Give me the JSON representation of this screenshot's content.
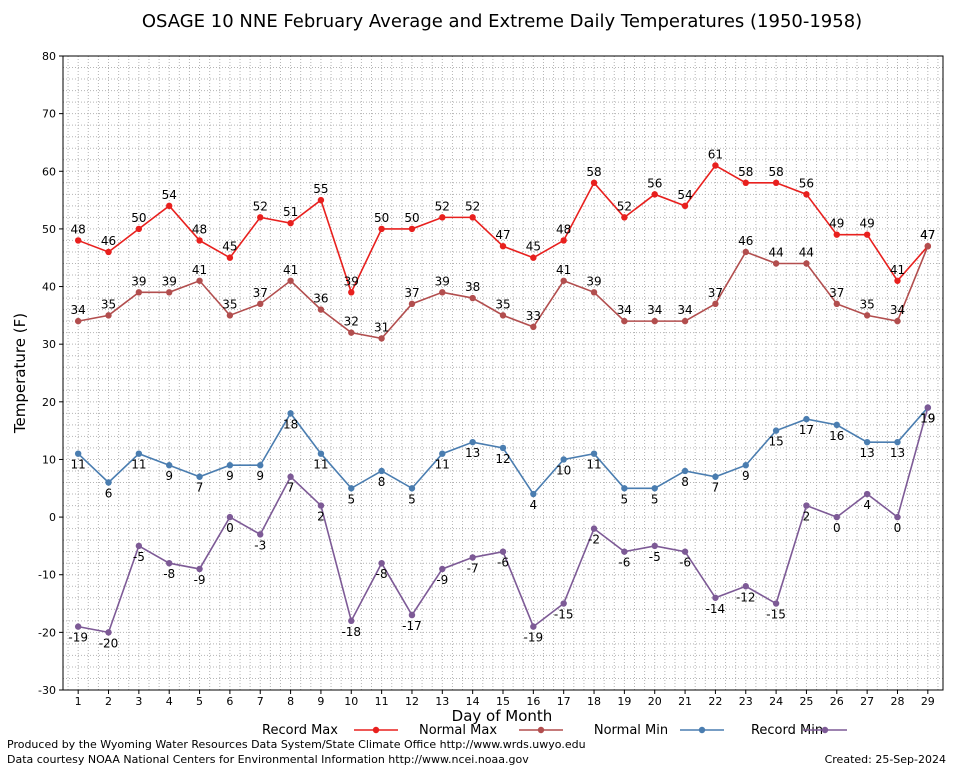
{
  "chart_data": {
    "type": "line",
    "title": "OSAGE 10 NNE February Average and Extreme Daily Temperatures (1950-1958)",
    "xlabel": "Day of Month",
    "ylabel": "Temperature (F)",
    "x": [
      1,
      2,
      3,
      4,
      5,
      6,
      7,
      8,
      9,
      10,
      11,
      12,
      13,
      14,
      15,
      16,
      17,
      18,
      19,
      20,
      21,
      22,
      23,
      24,
      25,
      26,
      27,
      28,
      29
    ],
    "ylim": [
      -30,
      80
    ],
    "yticks": [
      -30,
      -20,
      -10,
      0,
      10,
      20,
      30,
      40,
      50,
      60,
      70,
      80
    ],
    "grid": true,
    "legend_position": "bottom",
    "series": [
      {
        "name": "Record Max",
        "color": "#e8201e",
        "values": [
          48,
          46,
          50,
          54,
          48,
          45,
          52,
          51,
          55,
          39,
          50,
          50,
          52,
          52,
          47,
          45,
          48,
          58,
          52,
          56,
          54,
          61,
          58,
          58,
          56,
          49,
          49,
          41,
          47
        ]
      },
      {
        "name": "Normal Max",
        "color": "#b24e4e",
        "values": [
          34,
          35,
          39,
          39,
          41,
          35,
          37,
          41,
          36,
          32,
          31,
          37,
          39,
          38,
          35,
          33,
          41,
          39,
          34,
          34,
          34,
          37,
          46,
          44,
          44,
          37,
          35,
          34,
          47
        ]
      },
      {
        "name": "Normal Min",
        "color": "#4a7db0",
        "values": [
          11,
          6,
          11,
          9,
          7,
          9,
          9,
          18,
          11,
          5,
          8,
          5,
          11,
          13,
          12,
          4,
          10,
          11,
          5,
          5,
          8,
          7,
          9,
          15,
          17,
          16,
          13,
          13,
          19
        ]
      },
      {
        "name": "Record Min",
        "color": "#7d5a96",
        "values": [
          -19,
          -20,
          -5,
          -8,
          -9,
          0,
          -3,
          7,
          2,
          -18,
          -8,
          -17,
          -9,
          -7,
          -6,
          -19,
          -15,
          -2,
          -6,
          -5,
          -6,
          -14,
          -12,
          -15,
          2,
          0,
          4,
          0,
          19
        ]
      }
    ]
  },
  "footer": {
    "produced_by": "Produced by the Wyoming Water Resources Data System/State Climate Office http://www.wrds.uwyo.edu",
    "courtesy": "Data courtesy NOAA National Centers for Environmental Information http://www.ncei.noaa.gov",
    "created": "Created: 25-Sep-2024"
  }
}
